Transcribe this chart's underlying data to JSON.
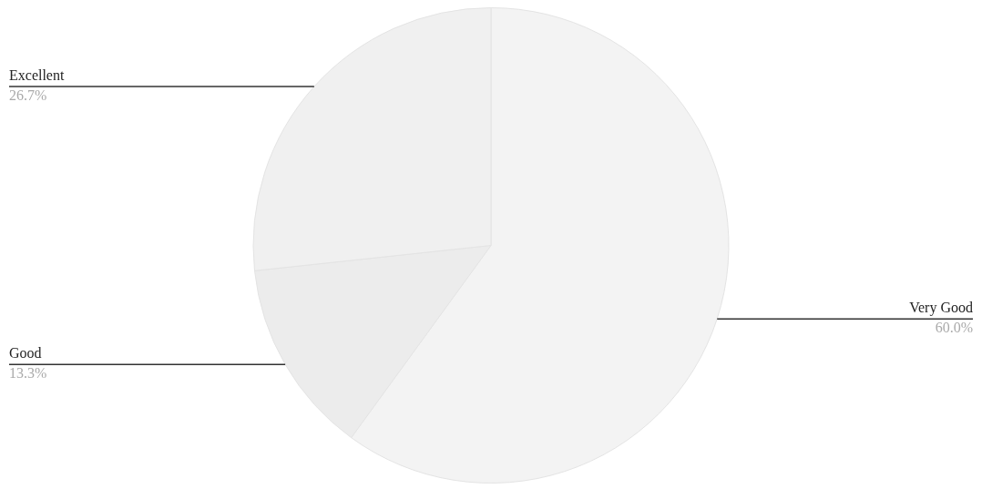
{
  "chart_data": {
    "type": "pie",
    "categories": [
      "Very Good",
      "Good",
      "Excellent"
    ],
    "values": [
      60.0,
      13.3,
      26.7
    ],
    "colors": [
      "#f3f3f3",
      "#ececec",
      "#f0f0f0"
    ],
    "value_labels": [
      "60.0%",
      "13.3%",
      "26.7%"
    ]
  }
}
